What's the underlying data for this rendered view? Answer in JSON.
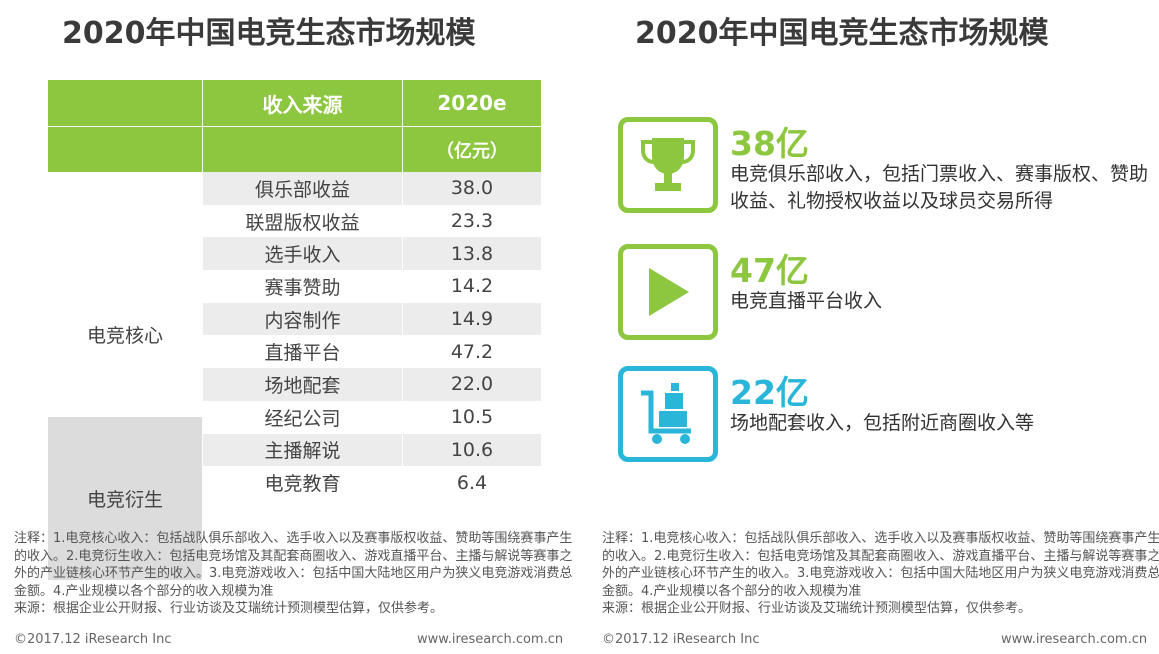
{
  "title": "2020年中国电竞生态市场规模",
  "table": {
    "header_col2": "收入来源",
    "header_col3": "2020e",
    "header_unit": "（亿元）",
    "groups": [
      {
        "name": "电竞核心"
      },
      {
        "name": "电竞衍生"
      }
    ],
    "rows": [
      {
        "source": "俱乐部收益",
        "value": "38.0"
      },
      {
        "source": "联盟版权收益",
        "value": "23.3"
      },
      {
        "source": "选手收入",
        "value": "13.8"
      },
      {
        "source": "赛事赞助",
        "value": "14.2"
      },
      {
        "source": "内容制作",
        "value": "14.9"
      },
      {
        "source": "直播平台",
        "value": "47.2"
      },
      {
        "source": "场地配套",
        "value": "22.0"
      },
      {
        "source": "经纪公司",
        "value": "10.5"
      },
      {
        "source": "主播解说",
        "value": "10.6"
      },
      {
        "source": "电竞教育",
        "value": "6.4"
      }
    ]
  },
  "highlights": [
    {
      "icon": "trophy-icon",
      "amount": "38亿",
      "desc": "电竞俱乐部收入，包括门票收入、赛事版权、赞助收益、礼物授权收益以及球员交易所得"
    },
    {
      "icon": "play-icon",
      "amount": "47亿",
      "desc": "电竞直播平台收入"
    },
    {
      "icon": "trolley-icon",
      "amount": "22亿",
      "desc": "场地配套收入，包括附近商圈收入等"
    }
  ],
  "notes_left": "注释：1.电竞核心收入：包括战队俱乐部收入、选手收入以及赛事版权收益、赞助等围绕赛事产生的收入。2.电竞衍生收入：包括电竞场馆及其配套商圈收入、游戏直播平台、主播与解说等赛事之外的产业链核心环节产生的收入。3.电竞游戏收入：包括中国大陆地区用户为狭义电竞游戏消费总金额。4.产业规模以各个部分的收入规模为准",
  "source_left": "来源：根据企业公开财报、行业访谈及艾瑞统计预测模型估算，仅供参考。",
  "notes_right": "注释：1.电竞核心收入：包括战队俱乐部收入、选手收入以及赛事版权收益、赞助等围绕赛事产生的收入。2.电竞衍生收入：包括电竞场馆及其配套商圈收入、游戏直播平台、主播与解说等赛事之外的产业链核心环节产生的收入。3.电竞游戏收入：包括中国大陆地区用户为狭义电竞游戏消费总金额。4.产业规模以各个部分的收入规模为准",
  "source_right": "来源：根据企业公开财报、行业访谈及艾瑞统计预测模型估算，仅供参考。",
  "copyright": "©2017.12 iResearch Inc",
  "website": "www.iresearch.com.cn",
  "colors": {
    "green": "#8dc63f",
    "blue": "#29b6d8"
  }
}
